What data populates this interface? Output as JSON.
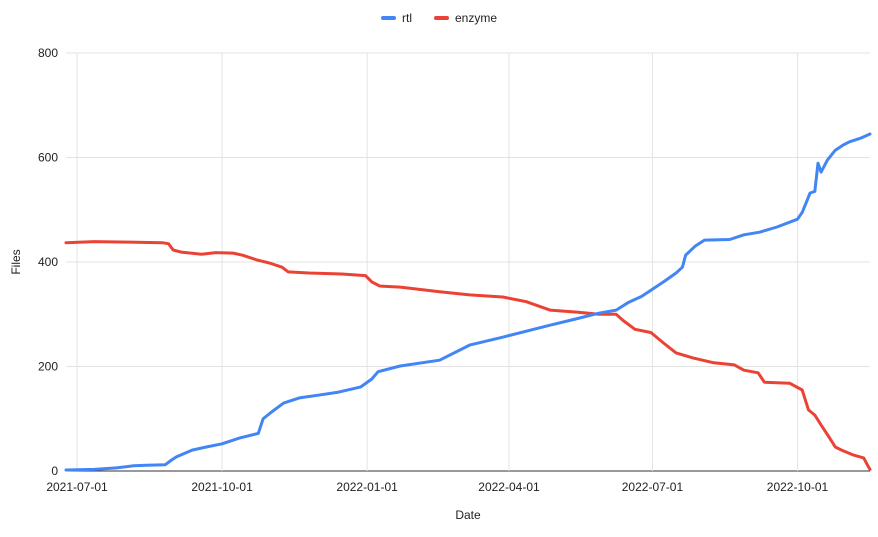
{
  "chart": {
    "colors": {
      "background": "#ffffff",
      "grid": "#e3e3e3",
      "axis_line": "#333333",
      "text": "#222222",
      "rtl_blue": "#4285F4",
      "enzyme_red": "#EA4335"
    }
  },
  "chart_data": {
    "type": "line",
    "title": "",
    "xlabel": "Date",
    "ylabel": "Files",
    "ylim": [
      0,
      800
    ],
    "y_ticks": [
      0,
      200,
      400,
      600,
      800
    ],
    "x_ticks": [
      "2021-07-01",
      "2021-10-01",
      "2022-01-01",
      "2022-04-01",
      "2022-07-01",
      "2022-10-01"
    ],
    "x_range": [
      "2021-06-24",
      "2022-11-16"
    ],
    "grid": true,
    "legend_position": "top-center",
    "series": [
      {
        "name": "rtl",
        "color": "#4285F4",
        "points": [
          [
            "2021-06-24",
            2
          ],
          [
            "2021-07-12",
            3
          ],
          [
            "2021-07-26",
            6
          ],
          [
            "2021-08-06",
            10
          ],
          [
            "2021-08-14",
            11
          ],
          [
            "2021-08-26",
            12
          ],
          [
            "2021-08-30",
            21
          ],
          [
            "2021-09-02",
            27
          ],
          [
            "2021-09-12",
            40
          ],
          [
            "2021-09-21",
            46
          ],
          [
            "2021-10-01",
            52
          ],
          [
            "2021-10-12",
            63
          ],
          [
            "2021-10-24",
            72
          ],
          [
            "2021-10-27",
            100
          ],
          [
            "2021-11-01",
            112
          ],
          [
            "2021-11-09",
            130
          ],
          [
            "2021-11-19",
            140
          ],
          [
            "2021-12-01",
            145
          ],
          [
            "2021-12-14",
            151
          ],
          [
            "2021-12-28",
            161
          ],
          [
            "2022-01-04",
            176
          ],
          [
            "2022-01-08",
            190
          ],
          [
            "2022-01-22",
            201
          ],
          [
            "2022-02-16",
            212
          ],
          [
            "2022-03-07",
            241
          ],
          [
            "2022-03-28",
            256
          ],
          [
            "2022-04-27",
            279
          ],
          [
            "2022-05-12",
            290
          ],
          [
            "2022-05-28",
            302
          ],
          [
            "2022-06-08",
            308
          ],
          [
            "2022-06-16",
            323
          ],
          [
            "2022-06-24",
            334
          ],
          [
            "2022-06-30",
            346
          ],
          [
            "2022-07-08",
            362
          ],
          [
            "2022-07-16",
            379
          ],
          [
            "2022-07-20",
            390
          ],
          [
            "2022-07-22",
            413
          ],
          [
            "2022-07-28",
            430
          ],
          [
            "2022-08-03",
            442
          ],
          [
            "2022-08-19",
            443
          ],
          [
            "2022-08-28",
            452
          ],
          [
            "2022-09-07",
            457
          ],
          [
            "2022-09-18",
            467
          ],
          [
            "2022-10-01",
            482
          ],
          [
            "2022-10-04",
            495
          ],
          [
            "2022-10-09",
            532
          ],
          [
            "2022-10-12",
            535
          ],
          [
            "2022-10-14",
            589
          ],
          [
            "2022-10-16",
            572
          ],
          [
            "2022-10-20",
            595
          ],
          [
            "2022-10-25",
            614
          ],
          [
            "2022-10-30",
            624
          ],
          [
            "2022-11-03",
            630
          ],
          [
            "2022-11-10",
            637
          ],
          [
            "2022-11-16",
            645
          ]
        ]
      },
      {
        "name": "enzyme",
        "color": "#EA4335",
        "points": [
          [
            "2021-06-24",
            437
          ],
          [
            "2021-07-12",
            439
          ],
          [
            "2021-08-03",
            438
          ],
          [
            "2021-08-24",
            437
          ],
          [
            "2021-08-28",
            435
          ],
          [
            "2021-08-31",
            423
          ],
          [
            "2021-09-05",
            419
          ],
          [
            "2021-09-18",
            415
          ],
          [
            "2021-09-27",
            418
          ],
          [
            "2021-10-08",
            417
          ],
          [
            "2021-10-14",
            413
          ],
          [
            "2021-10-23",
            404
          ],
          [
            "2021-10-31",
            398
          ],
          [
            "2021-11-08",
            390
          ],
          [
            "2021-11-12",
            381
          ],
          [
            "2021-11-25",
            379
          ],
          [
            "2021-12-16",
            377
          ],
          [
            "2021-12-31",
            374
          ],
          [
            "2022-01-04",
            362
          ],
          [
            "2022-01-09",
            354
          ],
          [
            "2022-01-22",
            352
          ],
          [
            "2022-02-16",
            343
          ],
          [
            "2022-03-07",
            337
          ],
          [
            "2022-03-28",
            333
          ],
          [
            "2022-04-12",
            324
          ],
          [
            "2022-04-27",
            308
          ],
          [
            "2022-05-15",
            304
          ],
          [
            "2022-05-28",
            300
          ],
          [
            "2022-06-08",
            300
          ],
          [
            "2022-06-12",
            289
          ],
          [
            "2022-06-20",
            271
          ],
          [
            "2022-06-30",
            265
          ],
          [
            "2022-07-08",
            245
          ],
          [
            "2022-07-16",
            226
          ],
          [
            "2022-07-27",
            216
          ],
          [
            "2022-08-09",
            207
          ],
          [
            "2022-08-22",
            203
          ],
          [
            "2022-08-28",
            193
          ],
          [
            "2022-09-06",
            188
          ],
          [
            "2022-09-10",
            170
          ],
          [
            "2022-09-26",
            168
          ],
          [
            "2022-10-04",
            155
          ],
          [
            "2022-10-08",
            117
          ],
          [
            "2022-10-12",
            107
          ],
          [
            "2022-10-16",
            88
          ],
          [
            "2022-10-21",
            65
          ],
          [
            "2022-10-25",
            46
          ],
          [
            "2022-10-29",
            40
          ],
          [
            "2022-11-05",
            31
          ],
          [
            "2022-11-12",
            25
          ],
          [
            "2022-11-15",
            8
          ],
          [
            "2022-11-16",
            3
          ]
        ]
      }
    ]
  }
}
